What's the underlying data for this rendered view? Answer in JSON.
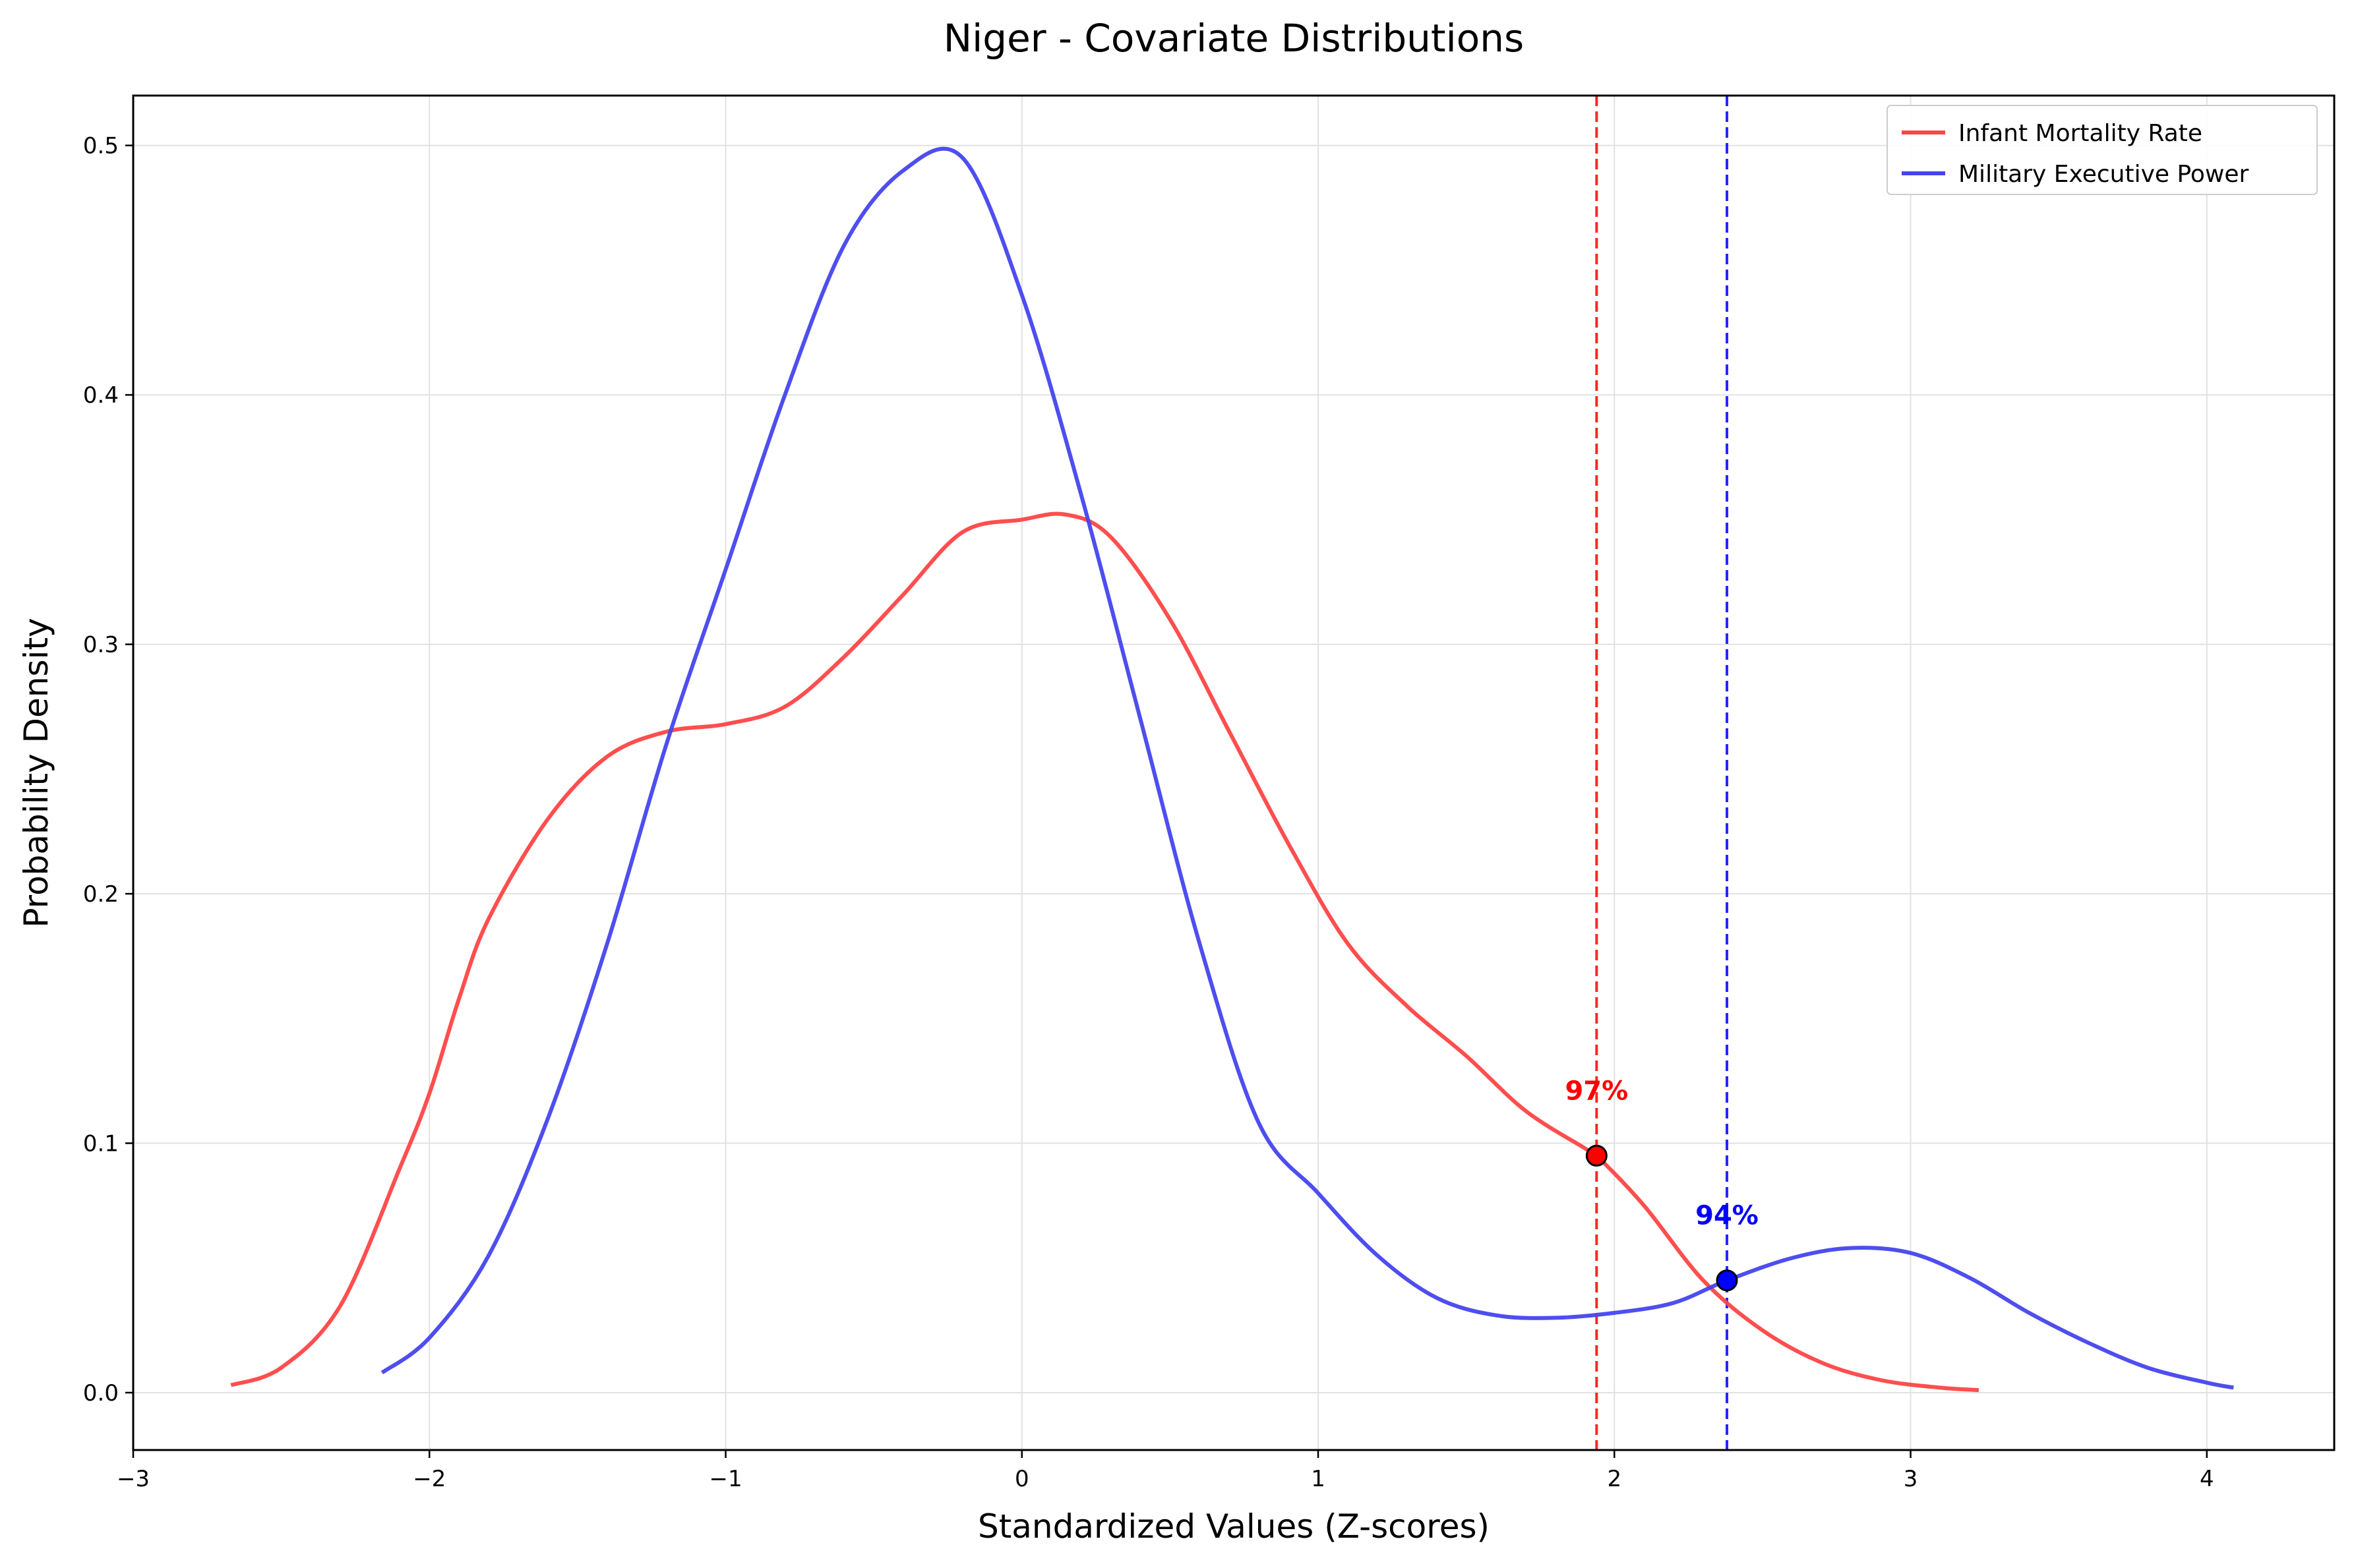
{
  "chart_data": {
    "type": "line",
    "title": "Niger - Covariate Distributions",
    "xlabel": "Standardized Values (Z-scores)",
    "ylabel": "Probability Density",
    "xlim": [
      -3,
      4.43
    ],
    "ylim": [
      -0.023,
      0.52
    ],
    "xticks": [
      -3,
      -2,
      -1,
      0,
      1,
      2,
      3,
      4
    ],
    "xtick_labels": [
      "−3",
      "−2",
      "−1",
      "0",
      "1",
      "2",
      "3",
      "4"
    ],
    "yticks": [
      0.0,
      0.1,
      0.2,
      0.3,
      0.4,
      0.5
    ],
    "ytick_labels": [
      "0.0",
      "0.1",
      "0.2",
      "0.3",
      "0.4",
      "0.5"
    ],
    "grid": true,
    "legend_position": "top-right",
    "series": [
      {
        "name": "Infant Mortality Rate",
        "color": "#ff4444",
        "x": [
          -2.67,
          -2.5,
          -2.3,
          -2.1,
          -2.0,
          -1.9,
          -1.8,
          -1.6,
          -1.4,
          -1.2,
          -1.0,
          -0.8,
          -0.6,
          -0.4,
          -0.2,
          0.0,
          0.15,
          0.3,
          0.5,
          0.7,
          0.9,
          1.1,
          1.3,
          1.5,
          1.7,
          1.9,
          1.94,
          2.1,
          2.3,
          2.5,
          2.7,
          2.9,
          3.1,
          3.23
        ],
        "y": [
          0.003,
          0.01,
          0.035,
          0.09,
          0.12,
          0.158,
          0.19,
          0.23,
          0.255,
          0.265,
          0.268,
          0.275,
          0.295,
          0.32,
          0.345,
          0.35,
          0.352,
          0.343,
          0.31,
          0.265,
          0.22,
          0.18,
          0.155,
          0.135,
          0.113,
          0.098,
          0.095,
          0.075,
          0.045,
          0.025,
          0.012,
          0.005,
          0.002,
          0.001
        ]
      },
      {
        "name": "Military Executive Power",
        "color": "#4444ee",
        "x": [
          -2.16,
          -2.0,
          -1.8,
          -1.6,
          -1.4,
          -1.2,
          -1.0,
          -0.8,
          -0.6,
          -0.4,
          -0.2,
          0.0,
          0.2,
          0.4,
          0.6,
          0.8,
          1.0,
          1.2,
          1.4,
          1.6,
          1.8,
          2.0,
          2.2,
          2.38,
          2.6,
          2.8,
          3.0,
          3.2,
          3.4,
          3.6,
          3.8,
          4.0,
          4.09
        ],
        "y": [
          0.008,
          0.022,
          0.055,
          0.11,
          0.18,
          0.26,
          0.33,
          0.4,
          0.46,
          0.49,
          0.495,
          0.44,
          0.36,
          0.27,
          0.18,
          0.108,
          0.08,
          0.055,
          0.038,
          0.031,
          0.03,
          0.032,
          0.036,
          0.045,
          0.054,
          0.058,
          0.056,
          0.046,
          0.032,
          0.02,
          0.01,
          0.004,
          0.002
        ]
      }
    ],
    "markers": [
      {
        "series": "Infant Mortality Rate",
        "x": 1.94,
        "y": 0.095,
        "label": "97%",
        "color": "#ff0000"
      },
      {
        "series": "Military Executive Power",
        "x": 2.38,
        "y": 0.045,
        "label": "94%",
        "color": "#0000ff"
      }
    ]
  }
}
